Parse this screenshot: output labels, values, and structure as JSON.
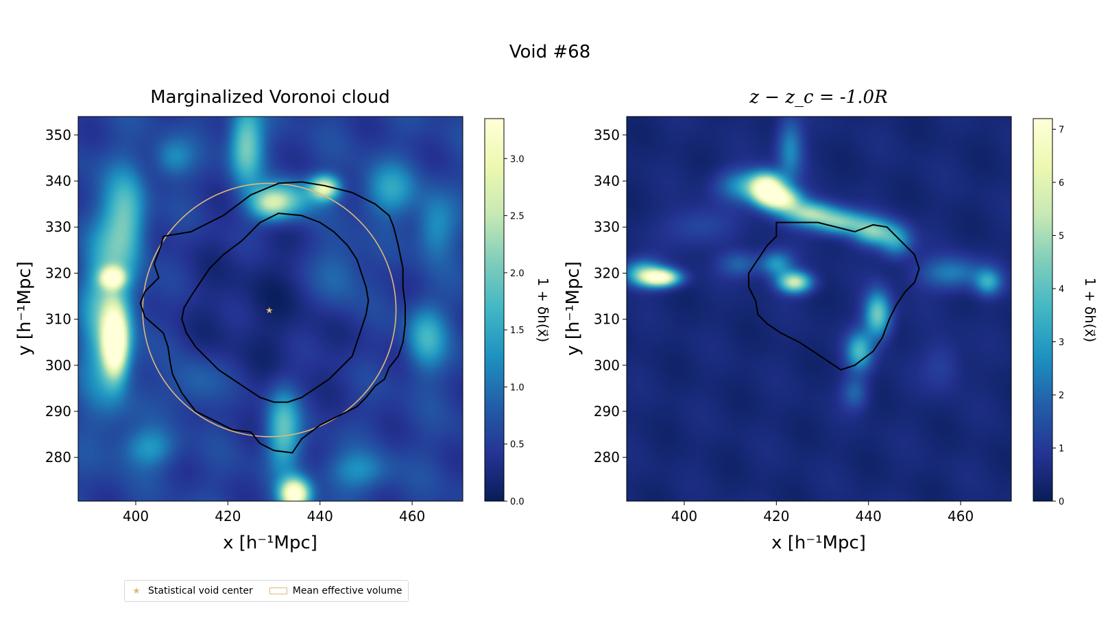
{
  "figure": {
    "suptitle": "Void #68"
  },
  "legend": {
    "items": [
      {
        "label": "Statistical void center",
        "marker": "star",
        "color": "#e0b87a"
      },
      {
        "label": "Mean effective volume",
        "marker": "patch",
        "color": "#e0b87a"
      }
    ]
  },
  "chart_data": [
    {
      "type": "heatmap",
      "title": "Marginalized Voronoi cloud",
      "xlabel": "x [h⁻¹Mpc]",
      "ylabel": "y [h⁻¹Mpc]",
      "xlim": [
        387.5,
        471
      ],
      "ylim": [
        270.5,
        354
      ],
      "xticks": [
        400,
        420,
        440,
        460
      ],
      "yticks": [
        280,
        290,
        300,
        310,
        320,
        330,
        340,
        350
      ],
      "colormap": "YlGnBu_r",
      "colorbar": {
        "label": "1 + δh(x⃗)",
        "min": 0.0,
        "max": 3.35,
        "ticks": [
          "0.0",
          "0.5",
          "1.0",
          "1.5",
          "2.0",
          "2.5",
          "3.0"
        ]
      },
      "void_center": [
        429,
        312
      ],
      "mean_effective_circle": {
        "center": [
          429,
          312
        ],
        "radius": 27.5
      },
      "outer_contour": [
        [
          431,
          339.5
        ],
        [
          425,
          337
        ],
        [
          419,
          332.5
        ],
        [
          416,
          331
        ],
        [
          412,
          329
        ],
        [
          406,
          328
        ],
        [
          405.5,
          326
        ],
        [
          404,
          322
        ],
        [
          405,
          319
        ],
        [
          402,
          316
        ],
        [
          401,
          313.5
        ],
        [
          402,
          310.5
        ],
        [
          406,
          307
        ],
        [
          407,
          304
        ],
        [
          407.5,
          300.5
        ],
        [
          408,
          298
        ],
        [
          410,
          294
        ],
        [
          413,
          290
        ],
        [
          417,
          288
        ],
        [
          421,
          286
        ],
        [
          425,
          285.5
        ],
        [
          427,
          283
        ],
        [
          430,
          281.5
        ],
        [
          434,
          281
        ],
        [
          436,
          284
        ],
        [
          440,
          287
        ],
        [
          444,
          289
        ],
        [
          448,
          291
        ],
        [
          450,
          293
        ],
        [
          452,
          295.5
        ],
        [
          454,
          297
        ],
        [
          455,
          299.5
        ],
        [
          457,
          302
        ],
        [
          458,
          305
        ],
        [
          458.5,
          309
        ],
        [
          458.5,
          313
        ],
        [
          458,
          317
        ],
        [
          458,
          321
        ],
        [
          457,
          326
        ],
        [
          456,
          330
        ],
        [
          455,
          332.5
        ],
        [
          452,
          335
        ],
        [
          447,
          337.5
        ],
        [
          441,
          339
        ],
        [
          436,
          339.8
        ],
        [
          431,
          339.5
        ]
      ],
      "inner_contour": [
        [
          431,
          333
        ],
        [
          427,
          331
        ],
        [
          423,
          327
        ],
        [
          419,
          324
        ],
        [
          416,
          321
        ],
        [
          414,
          318
        ],
        [
          412,
          315
        ],
        [
          410.5,
          312.5
        ],
        [
          410,
          310
        ],
        [
          411,
          307
        ],
        [
          413,
          304
        ],
        [
          415,
          302
        ],
        [
          418,
          299
        ],
        [
          421,
          297
        ],
        [
          424,
          295
        ],
        [
          427,
          293
        ],
        [
          430,
          292
        ],
        [
          433,
          292
        ],
        [
          436,
          293
        ],
        [
          439,
          295
        ],
        [
          442,
          297
        ],
        [
          445,
          300
        ],
        [
          447,
          302
        ],
        [
          448,
          305
        ],
        [
          449,
          308
        ],
        [
          450,
          311
        ],
        [
          450.5,
          314
        ],
        [
          450,
          317
        ],
        [
          449,
          320
        ],
        [
          448,
          323
        ],
        [
          446,
          326
        ],
        [
          443,
          329
        ],
        [
          440,
          331
        ],
        [
          436,
          332.5
        ],
        [
          431,
          333
        ]
      ],
      "density_blobs": [
        {
          "x": 395.5,
          "y": 305,
          "sx": 1.8,
          "sy": 5,
          "amp": 3.4
        },
        {
          "x": 395,
          "y": 319,
          "sx": 1.8,
          "sy": 1.5,
          "amp": 2.5
        },
        {
          "x": 394,
          "y": 312,
          "sx": 4,
          "sy": 14,
          "amp": 1.4
        },
        {
          "x": 429,
          "y": 335,
          "sx": 3,
          "sy": 2.4,
          "amp": 1.5
        },
        {
          "x": 433,
          "y": 336,
          "sx": 4,
          "sy": 3,
          "amp": 1.2
        },
        {
          "x": 441,
          "y": 338.5,
          "sx": 2.2,
          "sy": 1.8,
          "amp": 2.4
        },
        {
          "x": 434.5,
          "y": 272,
          "sx": 2.2,
          "sy": 2.3,
          "amp": 3.2
        },
        {
          "x": 432,
          "y": 286,
          "sx": 2.5,
          "sy": 6,
          "amp": 1.4
        },
        {
          "x": 424,
          "y": 348,
          "sx": 2.5,
          "sy": 6,
          "amp": 1.6
        },
        {
          "x": 398,
          "y": 332,
          "sx": 3,
          "sy": 7,
          "amp": 1.2
        },
        {
          "x": 455,
          "y": 338,
          "sx": 4,
          "sy": 4,
          "amp": 0.9
        },
        {
          "x": 463,
          "y": 306,
          "sx": 3,
          "sy": 5,
          "amp": 1.1
        },
        {
          "x": 465,
          "y": 330,
          "sx": 3,
          "sy": 5,
          "amp": 0.8
        },
        {
          "x": 403,
          "y": 282,
          "sx": 4,
          "sy": 3,
          "amp": 0.8
        },
        {
          "x": 448,
          "y": 277,
          "sx": 5,
          "sy": 3,
          "amp": 0.7
        },
        {
          "x": 408,
          "y": 345,
          "sx": 3,
          "sy": 3,
          "amp": 0.7
        },
        {
          "x": 444,
          "y": 320,
          "sx": 4,
          "sy": 6,
          "amp": 0.6
        },
        {
          "x": 413,
          "y": 296,
          "sx": 4,
          "sy": 4,
          "amp": 0.5
        }
      ]
    },
    {
      "type": "heatmap",
      "title": "z − z_c = -1.0R",
      "xlabel": "x [h⁻¹Mpc]",
      "ylabel": "y [h⁻¹Mpc]",
      "xlim": [
        387.5,
        471
      ],
      "ylim": [
        270.5,
        354
      ],
      "xticks": [
        400,
        420,
        440,
        460
      ],
      "yticks": [
        280,
        290,
        300,
        310,
        320,
        330,
        340,
        350
      ],
      "colormap": "YlGnBu_r",
      "colorbar": {
        "label": "1 + δh(x⃗)",
        "min": 0,
        "max": 7.2,
        "ticks": [
          "0",
          "1",
          "2",
          "3",
          "4",
          "5",
          "6",
          "7"
        ]
      },
      "contour": [
        [
          422,
          331
        ],
        [
          429,
          331
        ],
        [
          433,
          330
        ],
        [
          437,
          329
        ],
        [
          441,
          330.5
        ],
        [
          444,
          330
        ],
        [
          447,
          327
        ],
        [
          450,
          324
        ],
        [
          451,
          321
        ],
        [
          450,
          318
        ],
        [
          448,
          316
        ],
        [
          446,
          313
        ],
        [
          444.5,
          310
        ],
        [
          443,
          306
        ],
        [
          441,
          303
        ],
        [
          437,
          300
        ],
        [
          434,
          299
        ],
        [
          431,
          301
        ],
        [
          428,
          303
        ],
        [
          425,
          305
        ],
        [
          421,
          307
        ],
        [
          418,
          309
        ],
        [
          416,
          311
        ],
        [
          415.5,
          314
        ],
        [
          414,
          317
        ],
        [
          414,
          320
        ],
        [
          416,
          323
        ],
        [
          418,
          326
        ],
        [
          420,
          328
        ],
        [
          420,
          331
        ],
        [
          422,
          331
        ]
      ],
      "density_blobs": [
        {
          "x": 395,
          "y": 319,
          "sx": 2.8,
          "sy": 1.3,
          "amp": 6.6
        },
        {
          "x": 391,
          "y": 320,
          "sx": 3,
          "sy": 2,
          "amp": 3.5
        },
        {
          "x": 418,
          "y": 338.5,
          "sx": 2.5,
          "sy": 2.2,
          "amp": 6.8
        },
        {
          "x": 421,
          "y": 336,
          "sx": 3,
          "sy": 1.8,
          "amp": 5.5
        },
        {
          "x": 427,
          "y": 333,
          "sx": 4,
          "sy": 1.8,
          "amp": 4.2
        },
        {
          "x": 434,
          "y": 331,
          "sx": 4,
          "sy": 1.8,
          "amp": 3.8
        },
        {
          "x": 441,
          "y": 329,
          "sx": 3,
          "sy": 2,
          "amp": 3.6
        },
        {
          "x": 446,
          "y": 327,
          "sx": 2.5,
          "sy": 2.5,
          "amp": 2.6
        },
        {
          "x": 424,
          "y": 318,
          "sx": 2.5,
          "sy": 1.6,
          "amp": 5.2
        },
        {
          "x": 420,
          "y": 322,
          "sx": 2.5,
          "sy": 2,
          "amp": 2.5
        },
        {
          "x": 442,
          "y": 311,
          "sx": 2,
          "sy": 3.5,
          "amp": 4.0
        },
        {
          "x": 438,
          "y": 303,
          "sx": 2,
          "sy": 3,
          "amp": 3.2
        },
        {
          "x": 423,
          "y": 347,
          "sx": 2,
          "sy": 5,
          "amp": 2.2
        },
        {
          "x": 413,
          "y": 339,
          "sx": 4,
          "sy": 2.5,
          "amp": 2.5
        },
        {
          "x": 458,
          "y": 320,
          "sx": 5,
          "sy": 2.5,
          "amp": 2.0
        },
        {
          "x": 466,
          "y": 318,
          "sx": 2,
          "sy": 2,
          "amp": 2.6
        },
        {
          "x": 412,
          "y": 322,
          "sx": 3,
          "sy": 2,
          "amp": 1.5
        },
        {
          "x": 437,
          "y": 294,
          "sx": 2,
          "sy": 2.5,
          "amp": 1.5
        },
        {
          "x": 456,
          "y": 300,
          "sx": 3,
          "sy": 4,
          "amp": 0.8
        },
        {
          "x": 403,
          "y": 330,
          "sx": 5,
          "sy": 3,
          "amp": 1.0
        }
      ]
    }
  ]
}
